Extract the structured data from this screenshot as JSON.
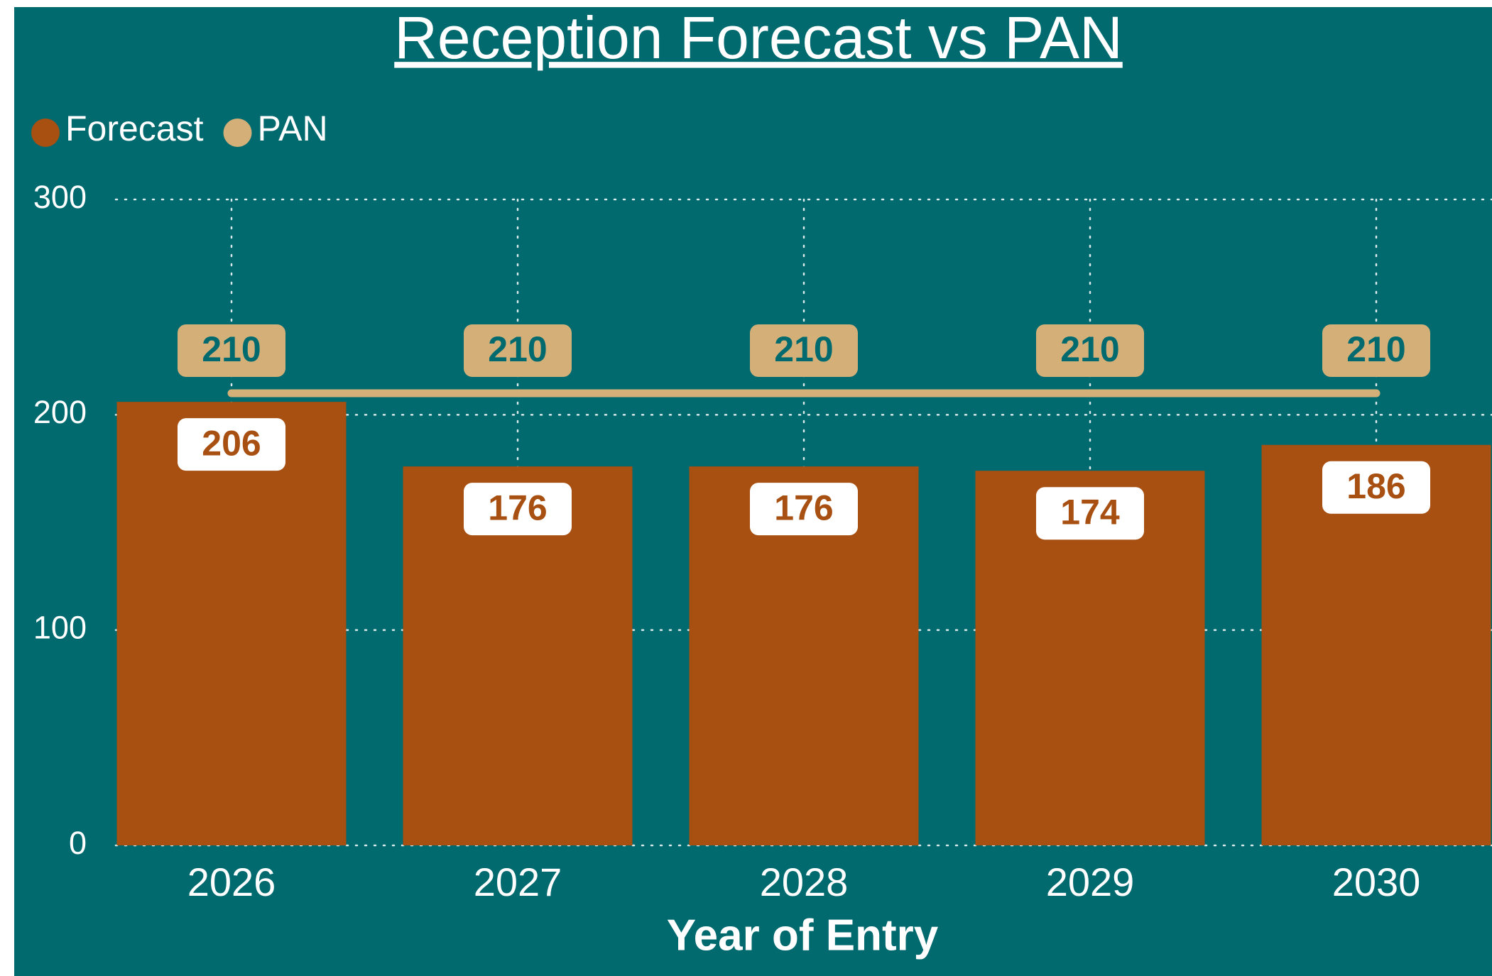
{
  "chart_data": {
    "type": "bar",
    "title": "Reception Forecast vs PAN",
    "x_label": "Year of Entry",
    "categories": [
      "2026",
      "2027",
      "2028",
      "2029",
      "2030"
    ],
    "series": [
      {
        "name": "Forecast",
        "type": "bar",
        "color": "#a84f12",
        "values": [
          206,
          176,
          176,
          174,
          186
        ]
      },
      {
        "name": "PAN",
        "type": "line",
        "color": "#d4b078",
        "values": [
          210,
          210,
          210,
          210,
          210
        ]
      }
    ],
    "ylim": [
      0,
      300
    ],
    "yticks": [
      0,
      100,
      200,
      300
    ],
    "grid": true,
    "legend": "top-left"
  }
}
